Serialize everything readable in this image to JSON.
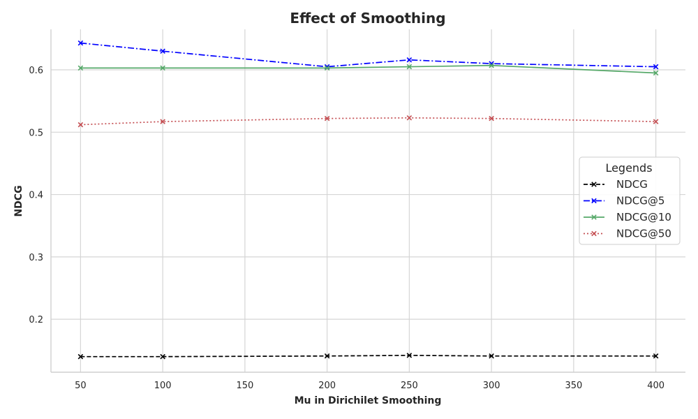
{
  "chart_data": {
    "type": "line",
    "title": "Effect of Smoothing",
    "xlabel": "Mu in Dirichilet Smoothing",
    "ylabel": "NDCG",
    "x": [
      50,
      100,
      200,
      250,
      300,
      400
    ],
    "xticks": [
      50,
      100,
      150,
      200,
      250,
      300,
      350,
      400
    ],
    "yticks": [
      0.2,
      0.3,
      0.4,
      0.5,
      0.6
    ],
    "xlim": [
      32,
      418
    ],
    "ylim": [
      0.115,
      0.665
    ],
    "grid": true,
    "legend_title": "Legends",
    "legend_position": "right",
    "series": [
      {
        "name": "NDCG",
        "values": [
          0.14,
          0.14,
          0.141,
          0.142,
          0.141,
          0.141
        ],
        "color": "#000000",
        "linestyle": "dashed",
        "marker": "x"
      },
      {
        "name": "NDCG@5",
        "values": [
          0.643,
          0.63,
          0.605,
          0.616,
          0.61,
          0.605
        ],
        "color": "#0000ff",
        "linestyle": "dashdot",
        "marker": "x"
      },
      {
        "name": "NDCG@10",
        "values": [
          0.603,
          0.603,
          0.603,
          0.605,
          0.607,
          0.595
        ],
        "color": "#55a868",
        "linestyle": "solid",
        "marker": "x"
      },
      {
        "name": "NDCG@50",
        "values": [
          0.512,
          0.517,
          0.522,
          0.523,
          0.522,
          0.517
        ],
        "color": "#c44e52",
        "linestyle": "dotted",
        "marker": "x"
      }
    ]
  }
}
